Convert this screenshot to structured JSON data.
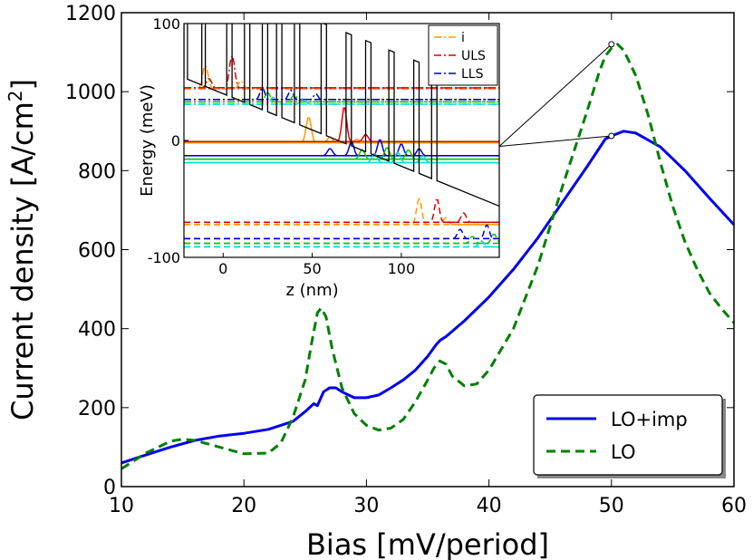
{
  "chart_data": {
    "type": "line",
    "main": {
      "xlabel": "Bias [mV/period]",
      "ylabel_prefix": "Current density [A/cm",
      "ylabel_sup": "2",
      "ylabel_suffix": "]",
      "xlim": [
        10,
        60
      ],
      "ylim": [
        0,
        1200
      ],
      "xticks": [
        10,
        20,
        30,
        40,
        50,
        60
      ],
      "yticks": [
        0,
        200,
        400,
        600,
        800,
        1000,
        1200
      ],
      "series": [
        {
          "name": "LO+imp",
          "color": "#0000ee",
          "dash": "solid",
          "points": [
            [
              10,
              60
            ],
            [
              12,
              80
            ],
            [
              14,
              100
            ],
            [
              16,
              117
            ],
            [
              18,
              128
            ],
            [
              20,
              135
            ],
            [
              22,
              145
            ],
            [
              24,
              165
            ],
            [
              25,
              190
            ],
            [
              25.7,
              210
            ],
            [
              26,
              205
            ],
            [
              26.5,
              240
            ],
            [
              27,
              250
            ],
            [
              27.5,
              250
            ],
            [
              28,
              240
            ],
            [
              29,
              225
            ],
            [
              30,
              225
            ],
            [
              31,
              232
            ],
            [
              32,
              250
            ],
            [
              33,
              270
            ],
            [
              34,
              295
            ],
            [
              35,
              330
            ],
            [
              35.7,
              360
            ],
            [
              36,
              370
            ],
            [
              36.5,
              380
            ],
            [
              38,
              420
            ],
            [
              40,
              480
            ],
            [
              42,
              550
            ],
            [
              44,
              630
            ],
            [
              46,
              720
            ],
            [
              48,
              810
            ],
            [
              49.5,
              880
            ],
            [
              50,
              888
            ],
            [
              51,
              900
            ],
            [
              52,
              895
            ],
            [
              54,
              860
            ],
            [
              56,
              800
            ],
            [
              58,
              730
            ],
            [
              60,
              663
            ]
          ]
        },
        {
          "name": "LO",
          "color": "#008000",
          "dash": "dashed",
          "points": [
            [
              10,
              45
            ],
            [
              12,
              85
            ],
            [
              14,
              115
            ],
            [
              15,
              120
            ],
            [
              16,
              117
            ],
            [
              18,
              100
            ],
            [
              20,
              83
            ],
            [
              22,
              85
            ],
            [
              23,
              110
            ],
            [
              24,
              175
            ],
            [
              25,
              270
            ],
            [
              25.5,
              360
            ],
            [
              26,
              440
            ],
            [
              26.3,
              452
            ],
            [
              26.7,
              430
            ],
            [
              27.2,
              350
            ],
            [
              28,
              250
            ],
            [
              29,
              185
            ],
            [
              30,
              155
            ],
            [
              31,
              143
            ],
            [
              32,
              148
            ],
            [
              33,
              170
            ],
            [
              34,
              215
            ],
            [
              35,
              270
            ],
            [
              35.5,
              300
            ],
            [
              36,
              318
            ],
            [
              36.5,
              310
            ],
            [
              37,
              280
            ],
            [
              38,
              255
            ],
            [
              39,
              260
            ],
            [
              40,
              295
            ],
            [
              42,
              400
            ],
            [
              44,
              560
            ],
            [
              46,
              760
            ],
            [
              48,
              950
            ],
            [
              49,
              1050
            ],
            [
              49.5,
              1090
            ],
            [
              50,
              1110
            ],
            [
              50.5,
              1120
            ],
            [
              51,
              1105
            ],
            [
              52,
              1040
            ],
            [
              53,
              940
            ],
            [
              54,
              820
            ],
            [
              55,
              710
            ],
            [
              56,
              620
            ],
            [
              57,
              550
            ],
            [
              58,
              490
            ],
            [
              59,
              450
            ],
            [
              60,
              415
            ]
          ]
        }
      ],
      "legend": {
        "position": "lower-right",
        "items": [
          "LO+imp",
          "LO"
        ]
      }
    },
    "inset": {
      "ylabel": "Energy (meV)",
      "xlabel": "z (nm)",
      "xlim": [
        -22,
        155
      ],
      "ylim": [
        -100,
        100
      ],
      "xticks": [
        0,
        50,
        100
      ],
      "yticks": [
        -100,
        0,
        100
      ],
      "legend": {
        "position": "top-right",
        "items": [
          {
            "name": "i",
            "color": "#ff9900",
            "dash": "dashdot"
          },
          {
            "name": "ULS",
            "color": "#dd0000",
            "dash": "dashdot"
          },
          {
            "name": "LLS",
            "color": "#0000dd",
            "dash": "dashdot"
          }
        ]
      },
      "levels": [
        {
          "y": 45,
          "color": "#dd0000",
          "dash": "dashdot"
        },
        {
          "y": 44,
          "color": "#ff9900",
          "dash": "dashdot"
        },
        {
          "y": 35,
          "color": "#0000dd",
          "dash": "dashdot"
        },
        {
          "y": 33,
          "color": "#00cc00",
          "dash": "dashdot"
        },
        {
          "y": 31,
          "color": "#00dddd",
          "dash": "dashdot"
        },
        {
          "y": -1,
          "color": "#dd0000",
          "dash": "solid"
        },
        {
          "y": -2,
          "color": "#ff9900",
          "dash": "solid"
        },
        {
          "y": -13,
          "color": "#0000dd",
          "dash": "solid"
        },
        {
          "y": -16,
          "color": "#00cc00",
          "dash": "solid"
        },
        {
          "y": -19,
          "color": "#00dddd",
          "dash": "solid"
        },
        {
          "y": -70,
          "color": "#dd0000",
          "dash": "dashed"
        },
        {
          "y": -72,
          "color": "#ff9900",
          "dash": "dashed"
        },
        {
          "y": -84,
          "color": "#0000dd",
          "dash": "dashed"
        },
        {
          "y": -88,
          "color": "#00cc00",
          "dash": "dashed"
        },
        {
          "y": -91,
          "color": "#00dddd",
          "dash": "dashed"
        }
      ],
      "wavefunctions": [
        {
          "color": "#ff9900",
          "dash": "dashdot",
          "base": 44,
          "peaks": [
            [
              -10,
              20,
              4
            ],
            [
              10,
              7,
              3
            ]
          ]
        },
        {
          "color": "#dd0000",
          "dash": "dashdot",
          "base": 45,
          "peaks": [
            [
              5,
              28,
              3
            ],
            [
              -8,
              8,
              3
            ]
          ]
        },
        {
          "color": "#0000dd",
          "dash": "dashdot",
          "base": 35,
          "peaks": [
            [
              22,
              10,
              2.5
            ],
            [
              38,
              8,
              2.5
            ],
            [
              52,
              5,
              2
            ]
          ]
        },
        {
          "color": "#00cc00",
          "dash": "dashdot",
          "base": 33,
          "peaks": [
            [
              25,
              8,
              3
            ],
            [
              40,
              6,
              3
            ]
          ]
        },
        {
          "color": "#00dddd",
          "dash": "dashdot",
          "base": 31,
          "peaks": [
            [
              28,
              6,
              3
            ],
            [
              45,
              5,
              3
            ]
          ]
        },
        {
          "color": "#ff9900",
          "dash": "solid",
          "base": -2,
          "peaks": [
            [
              48,
              22,
              3
            ],
            [
              60,
              5,
              3
            ],
            [
              75,
              3,
              3
            ]
          ]
        },
        {
          "color": "#dd0000",
          "dash": "solid",
          "base": -1,
          "peaks": [
            [
              68,
              30,
              2.5
            ],
            [
              80,
              6,
              3
            ]
          ]
        },
        {
          "color": "#0000dd",
          "dash": "solid",
          "base": -13,
          "peaks": [
            [
              60,
              6,
              3
            ],
            [
              72,
              12,
              2.5
            ],
            [
              88,
              14,
              2.5
            ],
            [
              100,
              10,
              2.5
            ],
            [
              110,
              6,
              2.5
            ]
          ]
        },
        {
          "color": "#00cc00",
          "dash": "solid",
          "base": -16,
          "peaks": [
            [
              78,
              8,
              3
            ],
            [
              92,
              10,
              3
            ],
            [
              104,
              8,
              3
            ]
          ]
        },
        {
          "color": "#00dddd",
          "dash": "solid",
          "base": -19,
          "peaks": [
            [
              85,
              8,
              3
            ],
            [
              98,
              9,
              3
            ],
            [
              112,
              6,
              3
            ]
          ]
        },
        {
          "color": "#ff9900",
          "dash": "dashed",
          "base": -72,
          "peaks": [
            [
              110,
              22,
              3
            ],
            [
              125,
              6,
              3
            ]
          ]
        },
        {
          "color": "#dd0000",
          "dash": "dashed",
          "base": -70,
          "peaks": [
            [
              120,
              20,
              2.5
            ],
            [
              135,
              8,
              3
            ]
          ]
        },
        {
          "color": "#0000dd",
          "dash": "dashed",
          "base": -84,
          "peaks": [
            [
              133,
              8,
              3
            ],
            [
              148,
              12,
              2.5
            ]
          ]
        },
        {
          "color": "#00cc00",
          "dash": "dashed",
          "base": -88,
          "peaks": [
            [
              140,
              6,
              3
            ],
            [
              152,
              8,
              3
            ]
          ]
        },
        {
          "color": "#00dddd",
          "dash": "dashed",
          "base": -91,
          "peaks": [
            [
              145,
              5,
              3
            ]
          ]
        }
      ],
      "band": {
        "slope": -0.62,
        "offset": 40,
        "barrier_height": 95,
        "barriers": [
          [
            -22,
            -20
          ],
          [
            -12,
            -10
          ],
          [
            2,
            5
          ],
          [
            12,
            15
          ],
          [
            22,
            25
          ],
          [
            30,
            33
          ],
          [
            40,
            43
          ],
          [
            55,
            58
          ],
          [
            69,
            72
          ],
          [
            80,
            83
          ],
          [
            93,
            96
          ],
          [
            107,
            110
          ],
          [
            117,
            120
          ]
        ]
      }
    },
    "markers": [
      {
        "x": 50,
        "y": 1120
      },
      {
        "x": 50,
        "y": 888
      }
    ]
  }
}
